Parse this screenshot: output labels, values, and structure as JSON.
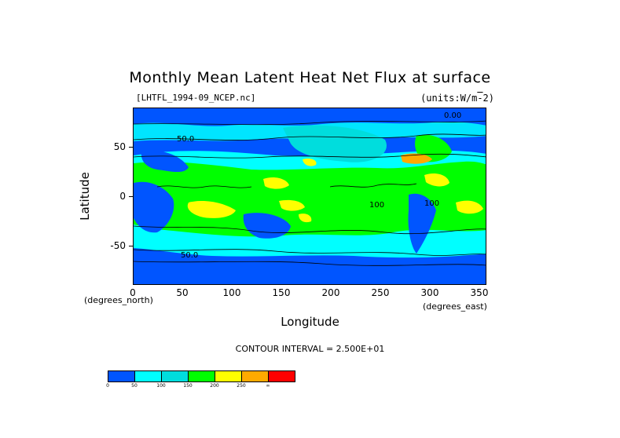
{
  "title": "Monthly Mean Latent Heat Net Flux at surface",
  "file_label": "[LHTFL_1994-09_NCEP.nc]",
  "units_label": "(units:W/m^-2)",
  "yaxis": {
    "label": "Latitude",
    "ticks": [
      "50",
      "0",
      "-50"
    ],
    "unit": "(degrees_north)"
  },
  "xaxis": {
    "label": "Longitude",
    "ticks": [
      "0",
      "50",
      "100",
      "150",
      "200",
      "250",
      "300",
      "350"
    ],
    "unit": "(degrees_east)"
  },
  "contour_interval": "CONTOUR INTERVAL = 2.500E+01",
  "colorbar": {
    "colors": [
      "#0055ff",
      "#00ffff",
      "#00dddd",
      "#00ff00",
      "#ffff00",
      "#ffaa00",
      "#ff0000"
    ],
    "ticks": [
      "0",
      "50",
      "100",
      "150",
      "200",
      "250",
      "∞"
    ]
  },
  "contour_labels": [
    "0.00",
    "50.0",
    "100",
    "50.0",
    "100"
  ],
  "palette": {
    "ocean_low": "#0055ff",
    "cyan": "#00ffff",
    "green": "#00ff00",
    "yellow": "#ffff00",
    "orange": "#ffaa00",
    "red": "#ff0000"
  }
}
